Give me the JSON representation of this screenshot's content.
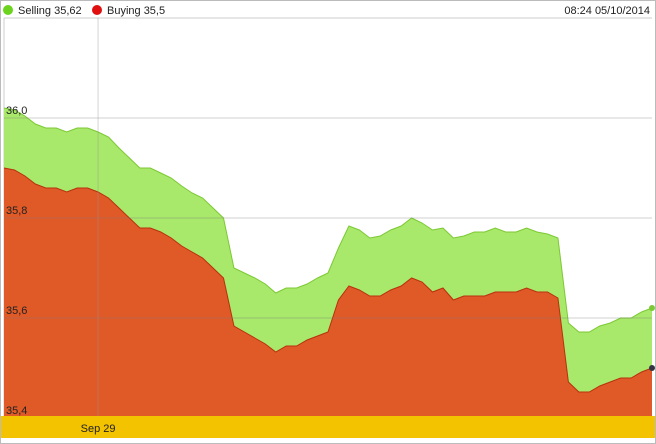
{
  "chart_data": {
    "type": "area",
    "timestamp": "08:24 05/10/2014",
    "legend_labels": [
      "Selling 35,62",
      "Buying 35,5"
    ],
    "categories": [
      null,
      null,
      null,
      null,
      null,
      null,
      null,
      null,
      null,
      "Sep 29",
      null,
      null,
      null,
      null,
      null,
      null,
      null,
      null,
      null,
      null,
      null,
      null,
      null,
      null,
      null,
      null,
      null,
      null,
      null,
      null,
      null,
      null,
      null,
      null,
      null,
      null,
      null,
      null,
      null,
      null,
      null,
      null,
      null,
      null,
      null,
      null,
      null,
      null,
      null,
      null,
      null,
      null,
      null,
      null,
      null,
      null,
      null,
      null,
      null,
      null,
      null,
      null,
      null
    ],
    "series": [
      {
        "name": "Selling",
        "color": "#a8e86a",
        "line_color": "#7cc934",
        "values": [
          36.02,
          36.016,
          36.004,
          35.988,
          35.98,
          35.98,
          35.972,
          35.98,
          35.98,
          35.972,
          35.962,
          35.94,
          35.92,
          35.9,
          35.9,
          35.89,
          35.88,
          35.864,
          35.85,
          35.84,
          35.82,
          35.8,
          35.7,
          35.69,
          35.68,
          35.668,
          35.65,
          35.66,
          35.66,
          35.668,
          35.68,
          35.69,
          35.74,
          35.784,
          35.776,
          35.76,
          35.764,
          35.776,
          35.784,
          35.8,
          35.79,
          35.776,
          35.78,
          35.76,
          35.764,
          35.772,
          35.772,
          35.78,
          35.772,
          35.772,
          35.78,
          35.772,
          35.768,
          35.76,
          35.59,
          35.572,
          35.572,
          35.584,
          35.59,
          35.6,
          35.6,
          35.612,
          35.62
        ]
      },
      {
        "name": "Buying",
        "color": "#e05a28",
        "line_color": "#b8300e",
        "values": [
          35.9,
          35.896,
          35.884,
          35.868,
          35.86,
          35.86,
          35.852,
          35.86,
          35.86,
          35.852,
          35.84,
          35.82,
          35.8,
          35.78,
          35.78,
          35.772,
          35.76,
          35.744,
          35.732,
          35.72,
          35.7,
          35.68,
          35.584,
          35.572,
          35.56,
          35.548,
          35.532,
          35.544,
          35.544,
          35.556,
          35.564,
          35.572,
          35.636,
          35.664,
          35.656,
          35.644,
          35.644,
          35.656,
          35.664,
          35.68,
          35.672,
          35.652,
          35.66,
          35.636,
          35.644,
          35.644,
          35.644,
          35.652,
          35.652,
          35.652,
          35.66,
          35.652,
          35.652,
          35.64,
          35.472,
          35.452,
          35.452,
          35.464,
          35.472,
          35.48,
          35.48,
          35.492,
          35.5
        ]
      }
    ],
    "legend_colors": [
      "#6cd31e",
      "#e01010"
    ],
    "ylim": [
      35.4,
      36.2
    ],
    "yticks": [
      {
        "value": 35.4,
        "label": "35,4"
      },
      {
        "value": 35.6,
        "label": "35,6"
      },
      {
        "value": 35.8,
        "label": "35,8"
      },
      {
        "value": 36.0,
        "label": "36,0"
      }
    ],
    "grid": true
  }
}
